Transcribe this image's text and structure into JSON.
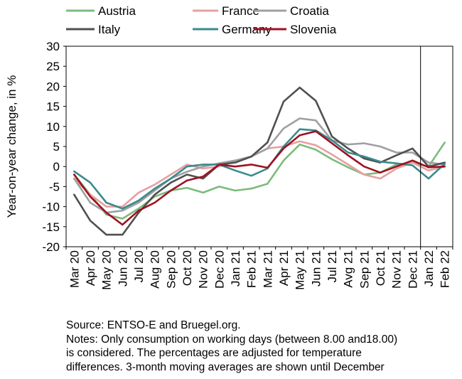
{
  "chart_data": {
    "type": "line",
    "ylabel": "Year-on-year change, in %",
    "xlabel": "",
    "title": "",
    "ylim": [
      -20,
      30
    ],
    "yticks": [
      "30",
      "25",
      "20",
      "15",
      "10",
      "5",
      "0",
      "-5",
      "-10",
      "-15",
      "-20"
    ],
    "grid": false,
    "legend_position": "top",
    "divider_after_category": "Dec 21",
    "categories": [
      "Mar 20",
      "Apr 20",
      "May 20",
      "Jun 20",
      "Jul 20",
      "Aug 20",
      "Sep 20",
      "Oct 20",
      "Nov 20",
      "Dec 20",
      "Jan 21",
      "Feb 21",
      "Mar 21",
      "Apr 21",
      "May 21",
      "Jun 21",
      "Jul 21",
      "Avg 21",
      "Sep 21",
      "Oct 21",
      "Nov 21",
      "Dec 21",
      "Jan 22",
      "Feb 22"
    ],
    "series": [
      {
        "name": "Austria",
        "color": "#7dbb7d",
        "values": [
          -2,
          -7,
          -12,
          -13,
          -10.5,
          -7.5,
          -6,
          -5.3,
          -6.5,
          -5,
          -6,
          -5.5,
          -4.3,
          1.5,
          5.5,
          4.2,
          1.8,
          -0.2,
          -2,
          -1.5,
          0.5,
          1,
          0,
          6
        ]
      },
      {
        "name": "France",
        "color": "#e6a0a0",
        "values": [
          -3,
          -7,
          -10,
          -10,
          -6.5,
          -4.5,
          -2,
          0.5,
          -0.5,
          0,
          1.5,
          2.5,
          4.5,
          5,
          6.3,
          5.3,
          3,
          0.5,
          -2,
          -3,
          -0.5,
          1,
          -1,
          0
        ]
      },
      {
        "name": "Croatia",
        "color": "#a0a0a0",
        "values": [
          -3,
          -9,
          -11.5,
          -11,
          -9,
          -6,
          -3,
          -1.3,
          0,
          0.8,
          1.5,
          2.5,
          4.5,
          9.5,
          12,
          11.5,
          6.5,
          5.5,
          5.8,
          5,
          3.5,
          3.5,
          1,
          0.5
        ]
      },
      {
        "name": "Italy",
        "color": "#505050",
        "values": [
          -7,
          -13.5,
          -17,
          -17,
          -11.5,
          -7,
          -4,
          -2,
          -3,
          0.5,
          1,
          2.5,
          6,
          16.2,
          19.7,
          16.4,
          7.5,
          4.5,
          2,
          1,
          2.8,
          4.5,
          0,
          1
        ]
      },
      {
        "name": "Germany",
        "color": "#3a8a8e",
        "values": [
          -1.2,
          -4,
          -9,
          -10.5,
          -8.5,
          -5.5,
          -3,
          0,
          0.5,
          0.5,
          -1,
          -2.3,
          -0.5,
          5,
          9.3,
          9,
          6.5,
          3.5,
          2.5,
          1.2,
          0.8,
          0.3,
          -3,
          0.7
        ]
      },
      {
        "name": "Slovenia",
        "color": "#a01020",
        "values": [
          -2,
          -7.5,
          -11.5,
          -14.5,
          -11,
          -9,
          -6,
          -3.5,
          -2.5,
          0.5,
          0,
          0.5,
          -0.3,
          4.5,
          7.8,
          8.8,
          5.8,
          2.8,
          0,
          -1.5,
          0,
          1.5,
          -0.2,
          0
        ]
      }
    ]
  },
  "notes": {
    "source": "Source: ENTSO-E and Bruegel.org.",
    "line1": "Notes: Only consumption on working days (between 8.00 and18.00)",
    "line2": "is considered. The percentages are adjusted for temperature",
    "line3": "differences. 3-month moving averages are shown until December"
  }
}
